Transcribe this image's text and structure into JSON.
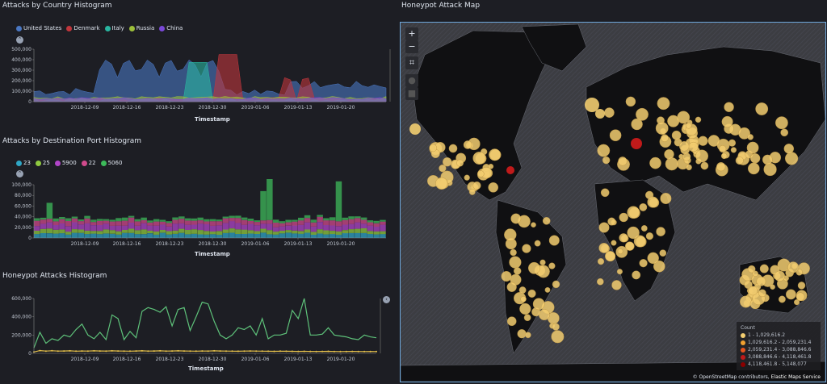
{
  "panels": {
    "country": {
      "title": "Attacks by Country Histogram",
      "legend": [
        {
          "label": "United States",
          "color": "#4a77c2"
        },
        {
          "label": "Denmark",
          "color": "#c0363c"
        },
        {
          "label": "Italy",
          "color": "#29b5a0"
        },
        {
          "label": "Russia",
          "color": "#9cbf3a"
        },
        {
          "label": "China",
          "color": "#7a48d8"
        }
      ],
      "y_ticks": [
        "500,000",
        "400,000",
        "300,000",
        "200,000",
        "100,000",
        "0"
      ],
      "x_ticks": [
        "2018-12-09",
        "2018-12-16",
        "2018-12-23",
        "2018-12-30",
        "2019-01-06",
        "2019-01-13",
        "2019-01-20"
      ],
      "x_title": "Timestamp"
    },
    "port": {
      "title": "Attacks by Destination Port Histogram",
      "legend": [
        {
          "label": "23",
          "color": "#2fa6c5"
        },
        {
          "label": "25",
          "color": "#8fc940"
        },
        {
          "label": "5900",
          "color": "#b045c8"
        },
        {
          "label": "22",
          "color": "#d04a8c"
        },
        {
          "label": "5060",
          "color": "#3dba5a"
        }
      ],
      "y_ticks": [
        "100,000",
        "80,000",
        "60,000",
        "40,000",
        "20,000",
        "0"
      ],
      "x_ticks": [
        "2018-12-09",
        "2018-12-16",
        "2018-12-23",
        "2018-12-30",
        "2019-01-06",
        "2019-01-13",
        "2019-01-20"
      ],
      "x_title": "Timestamp"
    },
    "attacks": {
      "title": "Honeypot Attacks Histogram",
      "y_ticks": [
        "600,000",
        "400,000",
        "200,000",
        "0"
      ],
      "x_ticks": [
        "2018-12-09",
        "2018-12-16",
        "2018-12-23",
        "2018-12-30",
        "2019-01-06",
        "2019-01-13",
        "2019-01-20"
      ],
      "x_title": "Timestamp",
      "series_total": [
        60000,
        230000,
        110000,
        160000,
        140000,
        200000,
        180000,
        260000,
        320000,
        200000,
        160000,
        230000,
        150000,
        420000,
        380000,
        150000,
        240000,
        170000,
        460000,
        500000,
        480000,
        450000,
        510000,
        300000,
        480000,
        500000,
        250000,
        400000,
        560000,
        540000,
        350000,
        200000,
        160000,
        200000,
        280000,
        260000,
        300000,
        200000,
        380000,
        160000,
        200000,
        200000,
        220000,
        470000,
        380000,
        600000,
        200000,
        200000,
        210000,
        280000,
        200000,
        190000,
        180000,
        160000,
        150000,
        200000,
        180000,
        170000
      ],
      "series_low": [
        15000,
        30000,
        25000,
        28000,
        25000,
        26000,
        27000,
        24000,
        26000,
        25000,
        27000,
        26000,
        25000,
        27000,
        26000,
        25000,
        24000,
        26000,
        27000,
        25000,
        26000,
        27000,
        25000,
        26000,
        27000,
        26000,
        25000,
        24000,
        26000,
        25000,
        27000,
        26000,
        25000,
        24000,
        23000,
        25000,
        26000,
        25000,
        24000,
        23000,
        22000,
        24000,
        23000,
        22000,
        21000,
        22000,
        21000,
        20000,
        21000,
        22000,
        20000,
        19000,
        20000,
        21000,
        20000,
        19000,
        20000,
        19000
      ]
    },
    "map": {
      "title": "Honeypot Attack Map",
      "legend_title": "Count",
      "legend": [
        {
          "label": "1 - 1,029,616.2",
          "color": "#f2cd70"
        },
        {
          "label": "1,029,616.2 - 2,059,231.4",
          "color": "#f0a030"
        },
        {
          "label": "2,059,231.4 - 3,088,846.6",
          "color": "#e6541e"
        },
        {
          "label": "3,088,846.6 - 4,118,461.8",
          "color": "#c01a1a"
        },
        {
          "label": "4,118,461.8 - 5,148,077",
          "color": "#8b0000"
        }
      ],
      "attribution_left": "© OpenStreetMap contributors,",
      "attribution_right": "Elastic Maps Service",
      "zoom_in": "+",
      "zoom_out": "−",
      "crop": "⌗"
    }
  }
}
